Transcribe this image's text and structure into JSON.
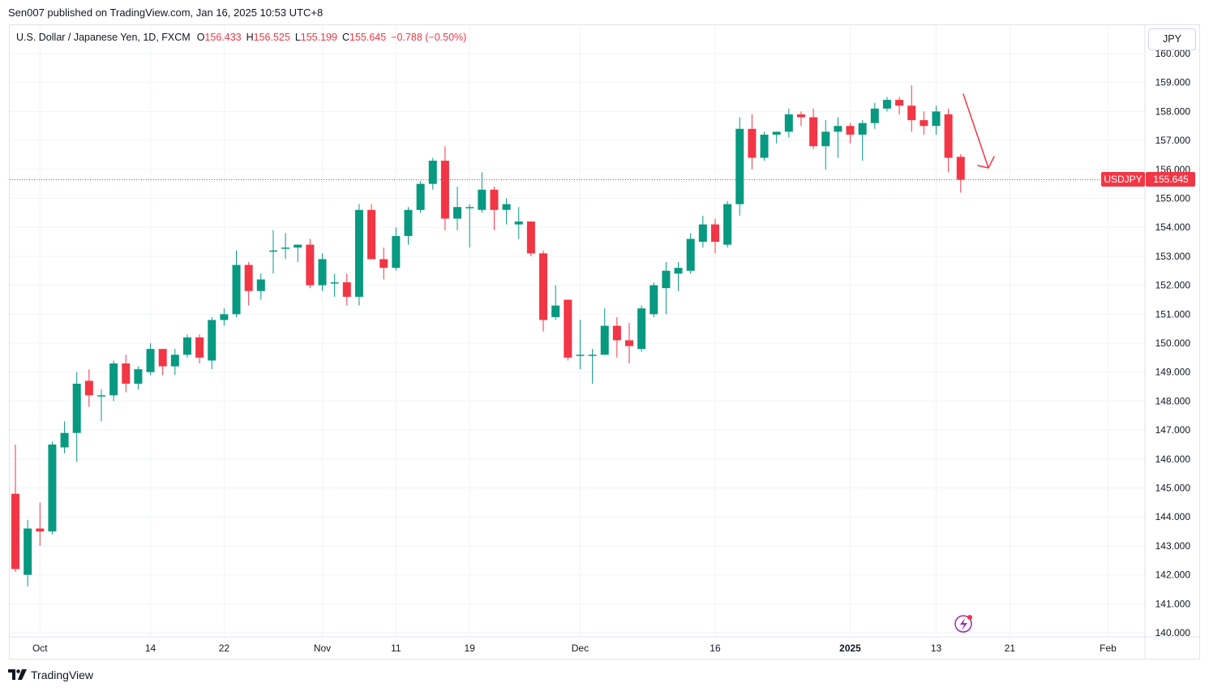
{
  "header": {
    "publish_text": "Sen007 published on TradingView.com, Jan 16, 2025 10:53 UTC+8"
  },
  "legend": {
    "symbol_text": "U.S. Dollar / Japanese Yen, 1D, FXCM",
    "open_label": "O",
    "open_value": "156.433",
    "high_label": "H",
    "high_value": "156.525",
    "low_label": "L",
    "low_value": "155.199",
    "close_label": "C",
    "close_value": "155.645",
    "change_value": "−0.788 (−0.50%)"
  },
  "currency_button": "JPY",
  "last_price": {
    "symbol_tag": "USDJPY",
    "value": "155.645",
    "number": 155.645
  },
  "footer": {
    "brand": "TradingView"
  },
  "colors": {
    "up": "#089981",
    "down": "#f23645",
    "grid": "#f0f3fa",
    "text": "#131722",
    "arrow": "#f23645",
    "lightning": "#9c27b0"
  },
  "icons": {
    "logo": "tradingview-logo-icon",
    "alert": "lightning-icon"
  },
  "chart_data": {
    "type": "candlestick",
    "symbol": "USDJPY",
    "timeframe": "1D",
    "ylim": [
      140,
      160
    ],
    "y_ticks": [
      140,
      141,
      142,
      143,
      144,
      145,
      146,
      147,
      148,
      149,
      150,
      151,
      152,
      153,
      154,
      155,
      156,
      157,
      158,
      159,
      160
    ],
    "x_ticks": [
      {
        "label": "Oct",
        "index": 2,
        "bold": false
      },
      {
        "label": "14",
        "index": 11,
        "bold": false
      },
      {
        "label": "22",
        "index": 17,
        "bold": false
      },
      {
        "label": "Nov",
        "index": 25,
        "bold": false
      },
      {
        "label": "11",
        "index": 31,
        "bold": false
      },
      {
        "label": "19",
        "index": 37,
        "bold": false
      },
      {
        "label": "Dec",
        "index": 46,
        "bold": false
      },
      {
        "label": "16",
        "index": 57,
        "bold": false
      },
      {
        "label": "2025",
        "index": 68,
        "bold": true
      },
      {
        "label": "13",
        "index": 75,
        "bold": false
      },
      {
        "label": "21",
        "index": 81,
        "bold": false
      },
      {
        "label": "Feb",
        "index": 89,
        "bold": false
      }
    ],
    "candles": [
      {
        "o": 144.8,
        "h": 146.5,
        "l": 142.1,
        "c": 142.2
      },
      {
        "o": 142.0,
        "h": 143.9,
        "l": 141.6,
        "c": 143.6
      },
      {
        "o": 143.6,
        "h": 144.5,
        "l": 143.0,
        "c": 143.5
      },
      {
        "o": 143.5,
        "h": 146.6,
        "l": 143.4,
        "c": 146.5
      },
      {
        "o": 146.4,
        "h": 147.3,
        "l": 146.2,
        "c": 146.9
      },
      {
        "o": 146.9,
        "h": 149.0,
        "l": 145.9,
        "c": 148.6
      },
      {
        "o": 148.7,
        "h": 149.1,
        "l": 147.8,
        "c": 148.2
      },
      {
        "o": 148.2,
        "h": 148.4,
        "l": 147.3,
        "c": 148.2
      },
      {
        "o": 148.2,
        "h": 149.4,
        "l": 148.0,
        "c": 149.3
      },
      {
        "o": 149.3,
        "h": 149.6,
        "l": 148.3,
        "c": 148.6
      },
      {
        "o": 148.6,
        "h": 149.2,
        "l": 148.4,
        "c": 149.1
      },
      {
        "o": 149.0,
        "h": 150.0,
        "l": 148.9,
        "c": 149.8
      },
      {
        "o": 149.8,
        "h": 149.8,
        "l": 148.9,
        "c": 149.2
      },
      {
        "o": 149.2,
        "h": 149.8,
        "l": 148.9,
        "c": 149.6
      },
      {
        "o": 149.6,
        "h": 150.3,
        "l": 149.5,
        "c": 150.2
      },
      {
        "o": 150.2,
        "h": 150.3,
        "l": 149.3,
        "c": 149.5
      },
      {
        "o": 149.4,
        "h": 150.9,
        "l": 149.1,
        "c": 150.8
      },
      {
        "o": 150.8,
        "h": 151.2,
        "l": 150.6,
        "c": 151.0
      },
      {
        "o": 151.0,
        "h": 153.2,
        "l": 150.9,
        "c": 152.7
      },
      {
        "o": 152.7,
        "h": 152.8,
        "l": 151.3,
        "c": 151.8
      },
      {
        "o": 151.8,
        "h": 152.4,
        "l": 151.5,
        "c": 152.2
      },
      {
        "o": 153.2,
        "h": 153.9,
        "l": 152.4,
        "c": 153.2
      },
      {
        "o": 153.3,
        "h": 153.8,
        "l": 152.9,
        "c": 153.3
      },
      {
        "o": 153.3,
        "h": 153.4,
        "l": 152.8,
        "c": 153.4
      },
      {
        "o": 153.4,
        "h": 153.6,
        "l": 151.9,
        "c": 152.0
      },
      {
        "o": 152.0,
        "h": 153.1,
        "l": 151.8,
        "c": 152.9
      },
      {
        "o": 152.1,
        "h": 152.4,
        "l": 151.6,
        "c": 152.1
      },
      {
        "o": 152.1,
        "h": 152.4,
        "l": 151.3,
        "c": 151.6
      },
      {
        "o": 151.6,
        "h": 154.8,
        "l": 151.3,
        "c": 154.6
      },
      {
        "o": 154.6,
        "h": 154.8,
        "l": 152.9,
        "c": 152.9
      },
      {
        "o": 152.9,
        "h": 153.3,
        "l": 152.2,
        "c": 152.6
      },
      {
        "o": 152.6,
        "h": 154.0,
        "l": 152.5,
        "c": 153.7
      },
      {
        "o": 153.7,
        "h": 154.7,
        "l": 153.4,
        "c": 154.6
      },
      {
        "o": 154.6,
        "h": 155.6,
        "l": 154.5,
        "c": 155.5
      },
      {
        "o": 155.5,
        "h": 156.4,
        "l": 155.3,
        "c": 156.3
      },
      {
        "o": 156.3,
        "h": 156.8,
        "l": 153.9,
        "c": 154.3
      },
      {
        "o": 154.3,
        "h": 155.4,
        "l": 153.9,
        "c": 154.7
      },
      {
        "o": 154.7,
        "h": 154.8,
        "l": 153.3,
        "c": 154.7
      },
      {
        "o": 154.6,
        "h": 155.9,
        "l": 154.5,
        "c": 155.3
      },
      {
        "o": 155.3,
        "h": 155.4,
        "l": 153.9,
        "c": 154.6
      },
      {
        "o": 154.6,
        "h": 155.0,
        "l": 154.1,
        "c": 154.8
      },
      {
        "o": 154.1,
        "h": 154.7,
        "l": 153.6,
        "c": 154.2
      },
      {
        "o": 154.2,
        "h": 154.2,
        "l": 153.0,
        "c": 153.1
      },
      {
        "o": 153.1,
        "h": 153.2,
        "l": 150.4,
        "c": 150.8
      },
      {
        "o": 150.9,
        "h": 152.0,
        "l": 150.8,
        "c": 151.3
      },
      {
        "o": 151.5,
        "h": 151.5,
        "l": 149.4,
        "c": 149.5
      },
      {
        "o": 149.6,
        "h": 150.8,
        "l": 149.1,
        "c": 149.6
      },
      {
        "o": 149.6,
        "h": 149.8,
        "l": 148.6,
        "c": 149.6
      },
      {
        "o": 149.6,
        "h": 151.2,
        "l": 149.6,
        "c": 150.6
      },
      {
        "o": 150.6,
        "h": 150.9,
        "l": 149.5,
        "c": 150.1
      },
      {
        "o": 150.1,
        "h": 150.7,
        "l": 149.3,
        "c": 149.9
      },
      {
        "o": 149.8,
        "h": 151.3,
        "l": 149.7,
        "c": 151.2
      },
      {
        "o": 151.0,
        "h": 152.1,
        "l": 150.9,
        "c": 152.0
      },
      {
        "o": 151.9,
        "h": 152.8,
        "l": 151.0,
        "c": 152.5
      },
      {
        "o": 152.4,
        "h": 152.8,
        "l": 151.8,
        "c": 152.6
      },
      {
        "o": 152.5,
        "h": 153.8,
        "l": 152.4,
        "c": 153.6
      },
      {
        "o": 153.5,
        "h": 154.4,
        "l": 153.3,
        "c": 154.1
      },
      {
        "o": 154.1,
        "h": 154.3,
        "l": 153.1,
        "c": 153.5
      },
      {
        "o": 153.4,
        "h": 154.9,
        "l": 153.3,
        "c": 154.8
      },
      {
        "o": 154.8,
        "h": 157.8,
        "l": 154.4,
        "c": 157.4
      },
      {
        "o": 157.4,
        "h": 157.9,
        "l": 156.0,
        "c": 156.4
      },
      {
        "o": 156.4,
        "h": 157.3,
        "l": 156.3,
        "c": 157.2
      },
      {
        "o": 157.2,
        "h": 157.3,
        "l": 156.9,
        "c": 157.3
      },
      {
        "o": 157.3,
        "h": 158.1,
        "l": 157.1,
        "c": 157.9
      },
      {
        "o": 157.9,
        "h": 158.0,
        "l": 157.5,
        "c": 157.8
      },
      {
        "o": 157.8,
        "h": 158.1,
        "l": 156.7,
        "c": 156.8
      },
      {
        "o": 156.8,
        "h": 157.7,
        "l": 156.0,
        "c": 157.3
      },
      {
        "o": 157.3,
        "h": 157.8,
        "l": 156.4,
        "c": 157.5
      },
      {
        "o": 157.5,
        "h": 157.6,
        "l": 156.9,
        "c": 157.2
      },
      {
        "o": 157.2,
        "h": 157.7,
        "l": 156.3,
        "c": 157.6
      },
      {
        "o": 157.6,
        "h": 158.3,
        "l": 157.4,
        "c": 158.1
      },
      {
        "o": 158.1,
        "h": 158.5,
        "l": 158.0,
        "c": 158.4
      },
      {
        "o": 158.4,
        "h": 158.5,
        "l": 157.9,
        "c": 158.2
      },
      {
        "o": 158.2,
        "h": 158.9,
        "l": 157.3,
        "c": 157.7
      },
      {
        "o": 157.7,
        "h": 158.0,
        "l": 157.2,
        "c": 157.5
      },
      {
        "o": 157.5,
        "h": 158.2,
        "l": 157.2,
        "c": 158.0
      },
      {
        "o": 157.9,
        "h": 158.1,
        "l": 155.9,
        "c": 156.4
      },
      {
        "o": 156.433,
        "h": 156.525,
        "l": 155.199,
        "c": 155.645
      }
    ]
  }
}
